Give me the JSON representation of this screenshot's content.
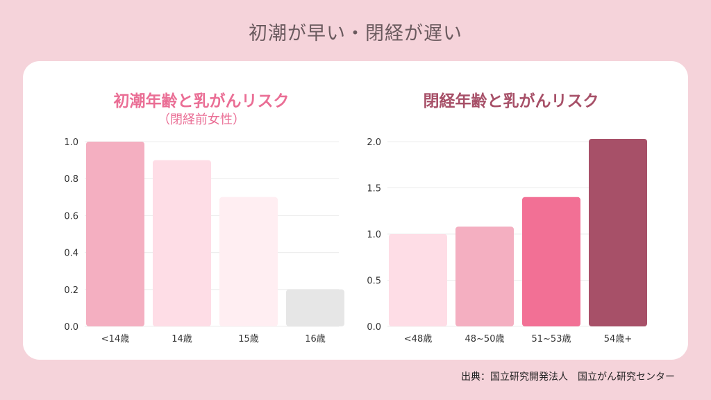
{
  "title": "初潮が早い・閉経が遅い",
  "source": "出典：国立研究開発法人　国立がん研究センター",
  "chart_data": [
    {
      "type": "bar",
      "title": "初潮年齢と乳がんリスク",
      "subtitle": "（閉経前女性）",
      "title_color": "#ea6e95",
      "categories": [
        "<14歳",
        "14歳",
        "15歳",
        "16歳"
      ],
      "values": [
        1.0,
        0.9,
        0.7,
        0.2
      ],
      "colors": [
        "#f4afc1",
        "#fedde6",
        "#ffeef2",
        "#e6e6e6"
      ],
      "ylim": [
        0,
        1.0
      ],
      "yticks": [
        "0.0",
        "0.2",
        "0.4",
        "0.6",
        "0.8",
        "1.0"
      ],
      "grid": true
    },
    {
      "type": "bar",
      "title": "閉経年齢と乳がんリスク",
      "title_color": "#a75068",
      "categories": [
        "<48歳",
        "48~50歳",
        "51~53歳",
        "54歳+"
      ],
      "values": [
        1.0,
        1.08,
        1.4,
        2.03
      ],
      "colors": [
        "#fedde6",
        "#f4afc1",
        "#f27095",
        "#a75068"
      ],
      "ylim": [
        0,
        2.0
      ],
      "yticks": [
        "0.0",
        "0.5",
        "1.0",
        "1.5",
        "2.0"
      ],
      "grid": true
    }
  ]
}
